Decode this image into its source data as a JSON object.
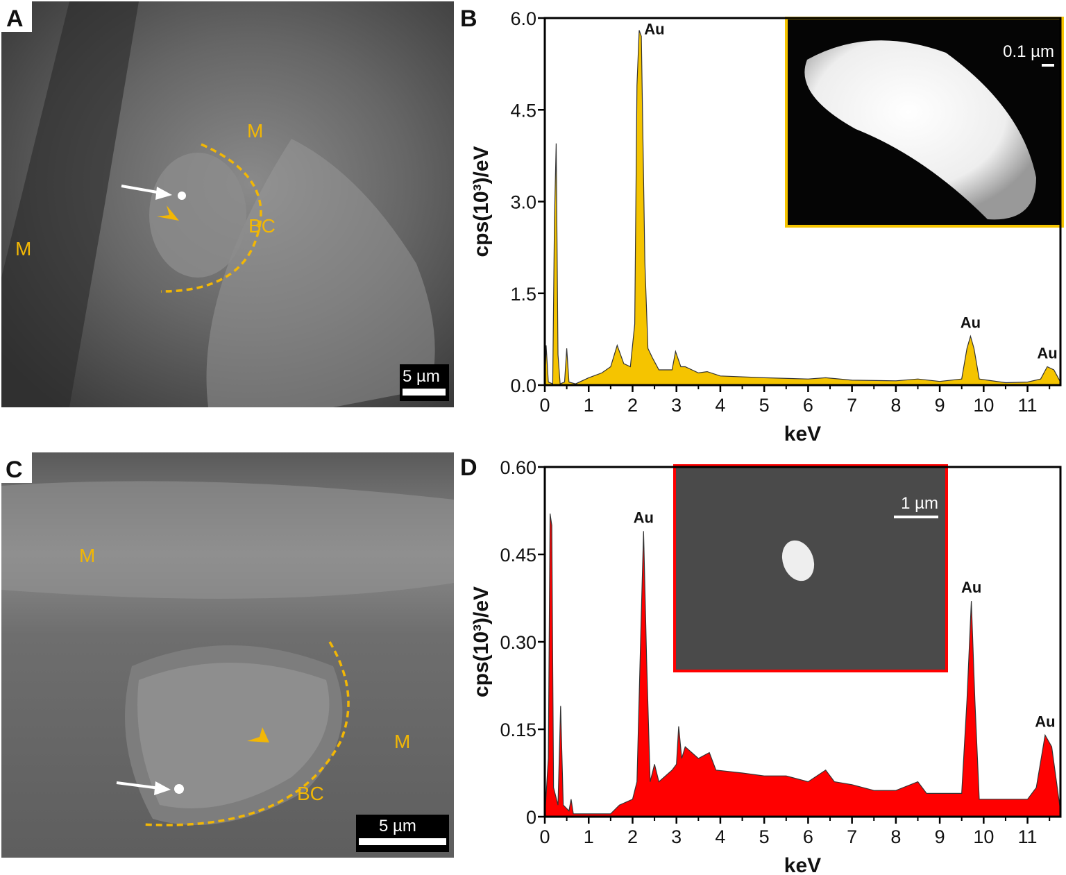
{
  "colors": {
    "gold": "#f5c400",
    "red": "#ff0000",
    "annotation": "#f2b705"
  },
  "panels": {
    "A": {
      "label": "A",
      "annotations": [
        "M",
        "M",
        "BC"
      ],
      "scale_bar": "5 µm",
      "icons": [
        "white-arrow",
        "yellow-arrowhead",
        "dashed-arc"
      ]
    },
    "C": {
      "label": "C",
      "annotations": [
        "M",
        "M",
        "BC"
      ],
      "scale_bar": "5 µm",
      "icons": [
        "white-arrow",
        "yellow-arrowhead",
        "dashed-arc"
      ]
    }
  },
  "chart_data": [
    {
      "panel": "B",
      "type": "area",
      "color": "#f5c400",
      "xlabel": "keV",
      "ylabel": "cps(10³)/eV",
      "xlim": [
        0,
        11.75
      ],
      "ylim": [
        0,
        6.0
      ],
      "xticks": [
        "0",
        "1",
        "2",
        "3",
        "4",
        "5",
        "6",
        "7",
        "8",
        "9",
        "10",
        "11"
      ],
      "yticks": [
        "0.0",
        "1.5",
        "3.0",
        "4.5",
        "6.0"
      ],
      "peak_labels": [
        {
          "text": "Au",
          "x": 2.15,
          "y": 5.8
        },
        {
          "text": "Au",
          "x": 9.7,
          "y": 0.8
        },
        {
          "text": "Au",
          "x": 11.45,
          "y": 0.3
        }
      ],
      "inset_scale_bar": "0.1 µm",
      "x": [
        0,
        0.03,
        0.08,
        0.18,
        0.22,
        0.26,
        0.3,
        0.35,
        0.45,
        0.5,
        0.55,
        0.7,
        1.0,
        1.3,
        1.5,
        1.65,
        1.8,
        1.95,
        2.05,
        2.1,
        2.15,
        2.2,
        2.28,
        2.35,
        2.45,
        2.6,
        2.9,
        2.98,
        3.1,
        3.2,
        3.5,
        3.7,
        4,
        5,
        6,
        6.4,
        7,
        8,
        8.5,
        9,
        9.5,
        9.62,
        9.7,
        9.78,
        9.9,
        10.5,
        11,
        11.3,
        11.45,
        11.6,
        11.75
      ],
      "y": [
        0,
        0.65,
        0.05,
        0.02,
        2.7,
        3.95,
        0.5,
        0.02,
        0.05,
        0.6,
        0.05,
        0.02,
        0.12,
        0.2,
        0.3,
        0.65,
        0.35,
        0.3,
        1.0,
        4.9,
        5.8,
        5.7,
        2.0,
        0.6,
        0.45,
        0.25,
        0.25,
        0.55,
        0.3,
        0.3,
        0.2,
        0.22,
        0.15,
        0.12,
        0.1,
        0.12,
        0.08,
        0.07,
        0.1,
        0.06,
        0.1,
        0.6,
        0.8,
        0.6,
        0.1,
        0.04,
        0.05,
        0.1,
        0.3,
        0.25,
        0.05
      ]
    },
    {
      "panel": "D",
      "type": "area",
      "color": "#ff0000",
      "xlabel": "keV",
      "ylabel": "cps(10³)/eV",
      "xlim": [
        0,
        11.75
      ],
      "ylim": [
        0,
        0.6
      ],
      "xticks": [
        "0",
        "1",
        "2",
        "3",
        "4",
        "5",
        "6",
        "7",
        "8",
        "9",
        "10",
        "11"
      ],
      "yticks": [
        "0",
        "0.15",
        "0.30",
        "0.45",
        "0.60"
      ],
      "peak_labels": [
        {
          "text": "Au",
          "x": 2.25,
          "y": 0.49
        },
        {
          "text": "Au",
          "x": 9.72,
          "y": 0.37
        },
        {
          "text": "Au",
          "x": 11.4,
          "y": 0.14
        }
      ],
      "inset_scale_bar": "1 µm",
      "x": [
        0,
        0.08,
        0.12,
        0.16,
        0.2,
        0.3,
        0.36,
        0.42,
        0.55,
        0.6,
        0.65,
        1,
        1.5,
        1.7,
        2,
        2.1,
        2.2,
        2.25,
        2.32,
        2.4,
        2.5,
        2.6,
        2.9,
        3.0,
        3.05,
        3.12,
        3.2,
        3.5,
        3.75,
        3.9,
        4.5,
        5,
        5.5,
        6,
        6.4,
        6.6,
        7,
        7.5,
        8,
        8.5,
        8.7,
        9.5,
        9.62,
        9.72,
        9.8,
        9.9,
        10.5,
        11,
        11.2,
        11.4,
        11.55,
        11.75
      ],
      "y": [
        0,
        0.1,
        0.52,
        0.5,
        0.05,
        0.02,
        0.19,
        0.02,
        0.01,
        0.03,
        0.005,
        0.005,
        0.005,
        0.02,
        0.03,
        0.06,
        0.35,
        0.49,
        0.27,
        0.06,
        0.09,
        0.06,
        0.08,
        0.09,
        0.155,
        0.1,
        0.12,
        0.1,
        0.11,
        0.08,
        0.075,
        0.07,
        0.07,
        0.06,
        0.08,
        0.06,
        0.055,
        0.045,
        0.045,
        0.06,
        0.04,
        0.04,
        0.2,
        0.37,
        0.2,
        0.03,
        0.03,
        0.03,
        0.05,
        0.14,
        0.12,
        0.01
      ]
    }
  ]
}
